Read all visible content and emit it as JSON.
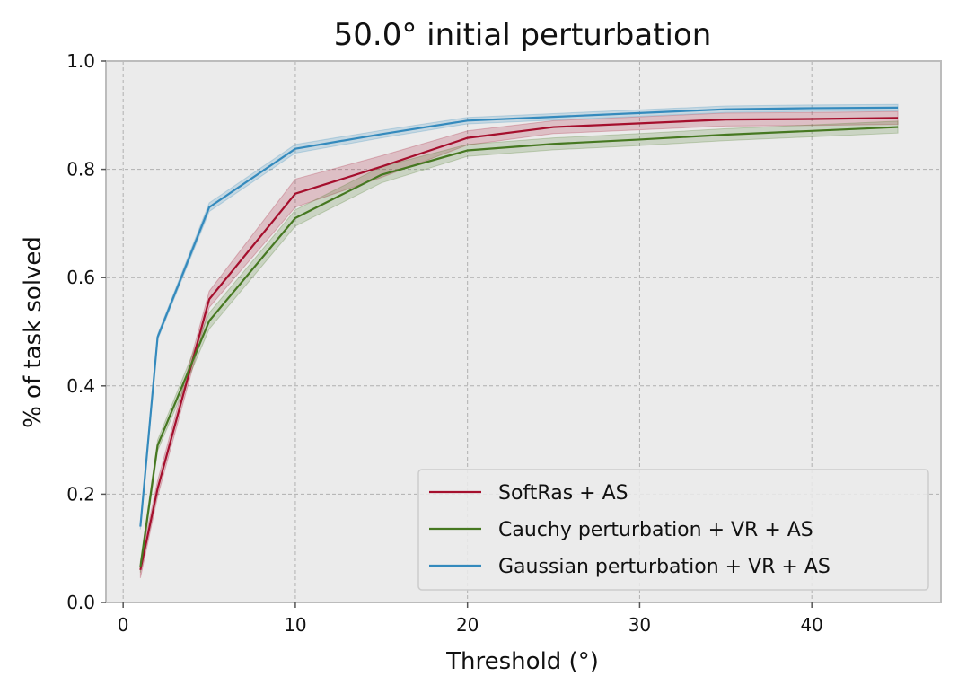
{
  "chart_data": {
    "type": "line",
    "title": "50.0° initial perturbation",
    "xlabel": "Threshold (°)",
    "ylabel": "% of task solved",
    "xlim": [
      -1,
      47.5
    ],
    "ylim": [
      0.0,
      1.0
    ],
    "xticks": [
      0,
      10,
      20,
      30,
      40
    ],
    "yticks": [
      0.0,
      0.2,
      0.4,
      0.6,
      0.8,
      1.0
    ],
    "xtick_labels": [
      "0",
      "10",
      "20",
      "30",
      "40"
    ],
    "ytick_labels": [
      "0.0",
      "0.2",
      "0.4",
      "0.6",
      "0.8",
      "1.0"
    ],
    "grid": true,
    "legend_position": "bottom-right",
    "x": [
      1,
      2,
      5,
      10,
      15,
      20,
      25,
      30,
      35,
      40,
      45
    ],
    "series": [
      {
        "name": "SoftRas + AS",
        "color": "#a50f2d",
        "values": [
          0.06,
          0.21,
          0.56,
          0.755,
          0.805,
          0.858,
          0.878,
          0.885,
          0.892,
          0.893,
          0.895
        ],
        "lower": [
          0.045,
          0.195,
          0.545,
          0.73,
          0.785,
          0.845,
          0.866,
          0.873,
          0.88,
          0.881,
          0.883
        ],
        "upper": [
          0.075,
          0.225,
          0.575,
          0.782,
          0.825,
          0.871,
          0.89,
          0.897,
          0.904,
          0.905,
          0.907
        ]
      },
      {
        "name": "Cauchy perturbation + VR + AS",
        "color": "#467821",
        "values": [
          0.065,
          0.29,
          0.52,
          0.71,
          0.79,
          0.835,
          0.847,
          0.855,
          0.864,
          0.871,
          0.878
        ],
        "lower": [
          0.055,
          0.28,
          0.505,
          0.695,
          0.775,
          0.824,
          0.836,
          0.844,
          0.853,
          0.86,
          0.867
        ],
        "upper": [
          0.075,
          0.3,
          0.535,
          0.725,
          0.805,
          0.846,
          0.858,
          0.866,
          0.875,
          0.882,
          0.889
        ]
      },
      {
        "name": "Gaussian perturbation + VR + AS",
        "color": "#348abd",
        "values": [
          0.14,
          0.49,
          0.73,
          0.838,
          0.865,
          0.89,
          0.897,
          0.904,
          0.911,
          0.913,
          0.914
        ],
        "lower": [
          0.135,
          0.485,
          0.722,
          0.83,
          0.858,
          0.884,
          0.891,
          0.898,
          0.905,
          0.907,
          0.908
        ],
        "upper": [
          0.145,
          0.495,
          0.738,
          0.846,
          0.872,
          0.896,
          0.903,
          0.91,
          0.917,
          0.919,
          0.92
        ]
      }
    ]
  },
  "colors": {
    "plot_background": "#ebebeb",
    "grid": "#b0b0b0",
    "spine": "#bcbcbc"
  }
}
